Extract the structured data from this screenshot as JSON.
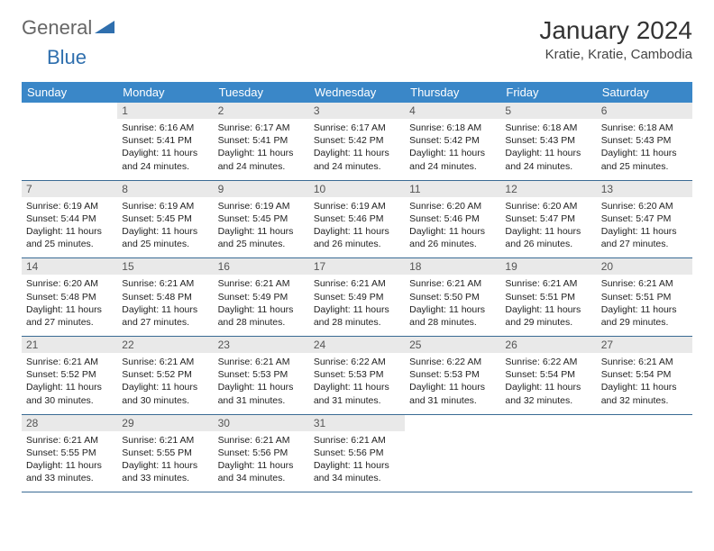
{
  "logo": {
    "word1": "General",
    "word2": "Blue"
  },
  "header": {
    "month_title": "January 2024",
    "location": "Kratie, Kratie, Cambodia"
  },
  "weekdays": [
    "Sunday",
    "Monday",
    "Tuesday",
    "Wednesday",
    "Thursday",
    "Friday",
    "Saturday"
  ],
  "colors": {
    "header_bg": "#3a87c8",
    "header_text": "#ffffff",
    "daynum_bg": "#e9e9e9",
    "row_divider": "#3a6b94",
    "logo_gray": "#666666",
    "logo_blue": "#2f6fae"
  },
  "typography": {
    "month_title_fontsize": 28,
    "location_fontsize": 15,
    "weekday_fontsize": 13,
    "daynum_fontsize": 12,
    "body_fontsize": 10.5
  },
  "weeks": [
    [
      {
        "empty": true
      },
      {
        "num": "1",
        "sunrise": "Sunrise: 6:16 AM",
        "sunset": "Sunset: 5:41 PM",
        "daylight1": "Daylight: 11 hours",
        "daylight2": "and 24 minutes."
      },
      {
        "num": "2",
        "sunrise": "Sunrise: 6:17 AM",
        "sunset": "Sunset: 5:41 PM",
        "daylight1": "Daylight: 11 hours",
        "daylight2": "and 24 minutes."
      },
      {
        "num": "3",
        "sunrise": "Sunrise: 6:17 AM",
        "sunset": "Sunset: 5:42 PM",
        "daylight1": "Daylight: 11 hours",
        "daylight2": "and 24 minutes."
      },
      {
        "num": "4",
        "sunrise": "Sunrise: 6:18 AM",
        "sunset": "Sunset: 5:42 PM",
        "daylight1": "Daylight: 11 hours",
        "daylight2": "and 24 minutes."
      },
      {
        "num": "5",
        "sunrise": "Sunrise: 6:18 AM",
        "sunset": "Sunset: 5:43 PM",
        "daylight1": "Daylight: 11 hours",
        "daylight2": "and 24 minutes."
      },
      {
        "num": "6",
        "sunrise": "Sunrise: 6:18 AM",
        "sunset": "Sunset: 5:43 PM",
        "daylight1": "Daylight: 11 hours",
        "daylight2": "and 25 minutes."
      }
    ],
    [
      {
        "num": "7",
        "sunrise": "Sunrise: 6:19 AM",
        "sunset": "Sunset: 5:44 PM",
        "daylight1": "Daylight: 11 hours",
        "daylight2": "and 25 minutes."
      },
      {
        "num": "8",
        "sunrise": "Sunrise: 6:19 AM",
        "sunset": "Sunset: 5:45 PM",
        "daylight1": "Daylight: 11 hours",
        "daylight2": "and 25 minutes."
      },
      {
        "num": "9",
        "sunrise": "Sunrise: 6:19 AM",
        "sunset": "Sunset: 5:45 PM",
        "daylight1": "Daylight: 11 hours",
        "daylight2": "and 25 minutes."
      },
      {
        "num": "10",
        "sunrise": "Sunrise: 6:19 AM",
        "sunset": "Sunset: 5:46 PM",
        "daylight1": "Daylight: 11 hours",
        "daylight2": "and 26 minutes."
      },
      {
        "num": "11",
        "sunrise": "Sunrise: 6:20 AM",
        "sunset": "Sunset: 5:46 PM",
        "daylight1": "Daylight: 11 hours",
        "daylight2": "and 26 minutes."
      },
      {
        "num": "12",
        "sunrise": "Sunrise: 6:20 AM",
        "sunset": "Sunset: 5:47 PM",
        "daylight1": "Daylight: 11 hours",
        "daylight2": "and 26 minutes."
      },
      {
        "num": "13",
        "sunrise": "Sunrise: 6:20 AM",
        "sunset": "Sunset: 5:47 PM",
        "daylight1": "Daylight: 11 hours",
        "daylight2": "and 27 minutes."
      }
    ],
    [
      {
        "num": "14",
        "sunrise": "Sunrise: 6:20 AM",
        "sunset": "Sunset: 5:48 PM",
        "daylight1": "Daylight: 11 hours",
        "daylight2": "and 27 minutes."
      },
      {
        "num": "15",
        "sunrise": "Sunrise: 6:21 AM",
        "sunset": "Sunset: 5:48 PM",
        "daylight1": "Daylight: 11 hours",
        "daylight2": "and 27 minutes."
      },
      {
        "num": "16",
        "sunrise": "Sunrise: 6:21 AM",
        "sunset": "Sunset: 5:49 PM",
        "daylight1": "Daylight: 11 hours",
        "daylight2": "and 28 minutes."
      },
      {
        "num": "17",
        "sunrise": "Sunrise: 6:21 AM",
        "sunset": "Sunset: 5:49 PM",
        "daylight1": "Daylight: 11 hours",
        "daylight2": "and 28 minutes."
      },
      {
        "num": "18",
        "sunrise": "Sunrise: 6:21 AM",
        "sunset": "Sunset: 5:50 PM",
        "daylight1": "Daylight: 11 hours",
        "daylight2": "and 28 minutes."
      },
      {
        "num": "19",
        "sunrise": "Sunrise: 6:21 AM",
        "sunset": "Sunset: 5:51 PM",
        "daylight1": "Daylight: 11 hours",
        "daylight2": "and 29 minutes."
      },
      {
        "num": "20",
        "sunrise": "Sunrise: 6:21 AM",
        "sunset": "Sunset: 5:51 PM",
        "daylight1": "Daylight: 11 hours",
        "daylight2": "and 29 minutes."
      }
    ],
    [
      {
        "num": "21",
        "sunrise": "Sunrise: 6:21 AM",
        "sunset": "Sunset: 5:52 PM",
        "daylight1": "Daylight: 11 hours",
        "daylight2": "and 30 minutes."
      },
      {
        "num": "22",
        "sunrise": "Sunrise: 6:21 AM",
        "sunset": "Sunset: 5:52 PM",
        "daylight1": "Daylight: 11 hours",
        "daylight2": "and 30 minutes."
      },
      {
        "num": "23",
        "sunrise": "Sunrise: 6:21 AM",
        "sunset": "Sunset: 5:53 PM",
        "daylight1": "Daylight: 11 hours",
        "daylight2": "and 31 minutes."
      },
      {
        "num": "24",
        "sunrise": "Sunrise: 6:22 AM",
        "sunset": "Sunset: 5:53 PM",
        "daylight1": "Daylight: 11 hours",
        "daylight2": "and 31 minutes."
      },
      {
        "num": "25",
        "sunrise": "Sunrise: 6:22 AM",
        "sunset": "Sunset: 5:53 PM",
        "daylight1": "Daylight: 11 hours",
        "daylight2": "and 31 minutes."
      },
      {
        "num": "26",
        "sunrise": "Sunrise: 6:22 AM",
        "sunset": "Sunset: 5:54 PM",
        "daylight1": "Daylight: 11 hours",
        "daylight2": "and 32 minutes."
      },
      {
        "num": "27",
        "sunrise": "Sunrise: 6:21 AM",
        "sunset": "Sunset: 5:54 PM",
        "daylight1": "Daylight: 11 hours",
        "daylight2": "and 32 minutes."
      }
    ],
    [
      {
        "num": "28",
        "sunrise": "Sunrise: 6:21 AM",
        "sunset": "Sunset: 5:55 PM",
        "daylight1": "Daylight: 11 hours",
        "daylight2": "and 33 minutes."
      },
      {
        "num": "29",
        "sunrise": "Sunrise: 6:21 AM",
        "sunset": "Sunset: 5:55 PM",
        "daylight1": "Daylight: 11 hours",
        "daylight2": "and 33 minutes."
      },
      {
        "num": "30",
        "sunrise": "Sunrise: 6:21 AM",
        "sunset": "Sunset: 5:56 PM",
        "daylight1": "Daylight: 11 hours",
        "daylight2": "and 34 minutes."
      },
      {
        "num": "31",
        "sunrise": "Sunrise: 6:21 AM",
        "sunset": "Sunset: 5:56 PM",
        "daylight1": "Daylight: 11 hours",
        "daylight2": "and 34 minutes."
      },
      {
        "empty": true
      },
      {
        "empty": true
      },
      {
        "empty": true
      }
    ]
  ]
}
